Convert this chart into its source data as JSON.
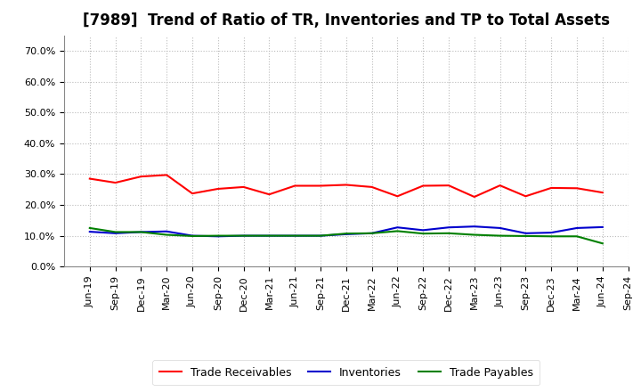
{
  "title": "[7989]  Trend of Ratio of TR, Inventories and TP to Total Assets",
  "labels": [
    "Jun-19",
    "Sep-19",
    "Dec-19",
    "Mar-20",
    "Jun-20",
    "Sep-20",
    "Dec-20",
    "Mar-21",
    "Jun-21",
    "Sep-21",
    "Dec-21",
    "Mar-22",
    "Jun-22",
    "Sep-22",
    "Dec-22",
    "Mar-23",
    "Jun-23",
    "Sep-23",
    "Dec-23",
    "Mar-24",
    "Jun-24",
    "Sep-24"
  ],
  "trade_receivables": [
    0.285,
    0.272,
    0.292,
    0.297,
    0.237,
    0.252,
    0.258,
    0.234,
    0.262,
    0.262,
    0.265,
    0.258,
    0.228,
    0.262,
    0.263,
    0.226,
    0.263,
    0.228,
    0.255,
    0.254,
    0.24,
    null
  ],
  "inventories": [
    0.113,
    0.108,
    0.112,
    0.114,
    0.1,
    0.098,
    0.1,
    0.1,
    0.1,
    0.1,
    0.105,
    0.108,
    0.127,
    0.118,
    0.127,
    0.13,
    0.125,
    0.108,
    0.11,
    0.125,
    0.128,
    null
  ],
  "trade_payables": [
    0.125,
    0.112,
    0.112,
    0.103,
    0.099,
    0.1,
    0.1,
    0.1,
    0.1,
    0.1,
    0.107,
    0.108,
    0.115,
    0.107,
    0.108,
    0.103,
    0.1,
    0.099,
    0.098,
    0.098,
    0.075,
    null
  ],
  "ylim": [
    0.0,
    0.75
  ],
  "yticks": [
    0.0,
    0.1,
    0.2,
    0.3,
    0.4,
    0.5,
    0.6,
    0.7
  ],
  "tr_color": "#FF0000",
  "inv_color": "#0000CD",
  "tp_color": "#008000",
  "bg_color": "#FFFFFF",
  "plot_bg_color": "#FFFFFF",
  "grid_color": "#BBBBBB",
  "title_fontsize": 12,
  "legend_fontsize": 9,
  "tick_fontsize": 8
}
